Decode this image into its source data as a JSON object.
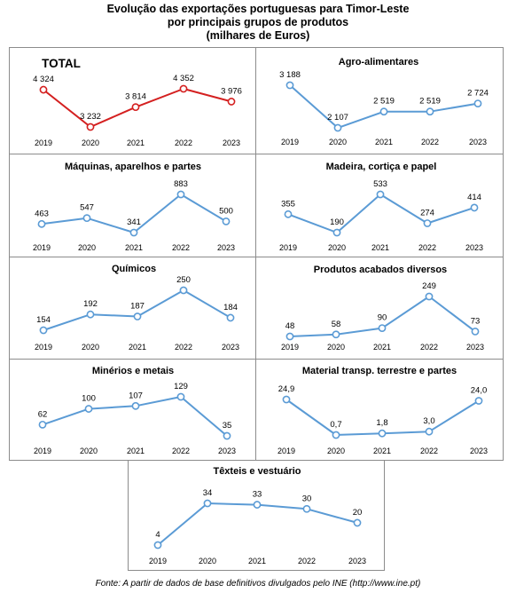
{
  "header": {
    "line1": "Evolução das exportações portuguesas para Timor-Leste",
    "line2": "por principais grupos de produtos",
    "line3": "(milhares de Euros)"
  },
  "footer": "Fonte: A partir de dados de base definitivos divulgados pelo INE  (http://www.ine.pt)",
  "colors": {
    "total_line": "#d42020",
    "series_line": "#5b9bd5",
    "marker_fill": "#ffffff",
    "panel_border": "#8c8c8c"
  },
  "chart_data": [
    {
      "type": "line",
      "title": "TOTAL",
      "x": [
        "2019",
        "2020",
        "2021",
        "2022",
        "2023"
      ],
      "values": [
        4324,
        3232,
        3814,
        4352,
        3976
      ],
      "labels": [
        "4 324",
        "3 232",
        "3 814",
        "4 352",
        "3 976"
      ]
    },
    {
      "type": "line",
      "title": "Agro-alimentares",
      "x": [
        "2019",
        "2020",
        "2021",
        "2022",
        "2023"
      ],
      "values": [
        3188,
        2107,
        2519,
        2519,
        2724
      ],
      "labels": [
        "3 188",
        "2 107",
        "2 519",
        "2 519",
        "2 724"
      ]
    },
    {
      "type": "line",
      "title": "Máquinas, aparelhos e partes",
      "x": [
        "2019",
        "2020",
        "2021",
        "2022",
        "2023"
      ],
      "values": [
        463,
        547,
        341,
        883,
        500
      ],
      "labels": [
        "463",
        "547",
        "341",
        "883",
        "500"
      ]
    },
    {
      "type": "line",
      "title": "Madeira, cortiça e papel",
      "x": [
        "2019",
        "2020",
        "2021",
        "2022",
        "2023"
      ],
      "values": [
        355,
        190,
        533,
        274,
        414
      ],
      "labels": [
        "355",
        "190",
        "533",
        "274",
        "414"
      ]
    },
    {
      "type": "line",
      "title": "Químicos",
      "x": [
        "2019",
        "2020",
        "2021",
        "2022",
        "2023"
      ],
      "values": [
        154,
        192,
        187,
        250,
        184
      ],
      "labels": [
        "154",
        "192",
        "187",
        "250",
        "184"
      ]
    },
    {
      "type": "line",
      "title": "Produtos acabados diversos",
      "x": [
        "2019",
        "2020",
        "2021",
        "2022",
        "2023"
      ],
      "values": [
        48,
        58,
        90,
        249,
        73
      ],
      "labels": [
        "48",
        "58",
        "90",
        "249",
        "73"
      ]
    },
    {
      "type": "line",
      "title": "Minérios e metais",
      "x": [
        "2019",
        "2020",
        "2021",
        "2022",
        "2023"
      ],
      "values": [
        62,
        100,
        107,
        129,
        35
      ],
      "labels": [
        "62",
        "100",
        "107",
        "129",
        "35"
      ]
    },
    {
      "type": "line",
      "title": "Material transp. terrestre e partes",
      "x": [
        "2019",
        "2020",
        "2021",
        "2022",
        "2023"
      ],
      "values": [
        24.9,
        0.7,
        1.8,
        3.0,
        24.0
      ],
      "labels": [
        "24,9",
        "0,7",
        "1,8",
        "3,0",
        "24,0"
      ]
    },
    {
      "type": "line",
      "title": "Têxteis e vestuário",
      "x": [
        "2019",
        "2020",
        "2021",
        "2022",
        "2023"
      ],
      "values": [
        4,
        34,
        33,
        30,
        20
      ],
      "labels": [
        "4",
        "34",
        "33",
        "30",
        "20"
      ]
    }
  ]
}
